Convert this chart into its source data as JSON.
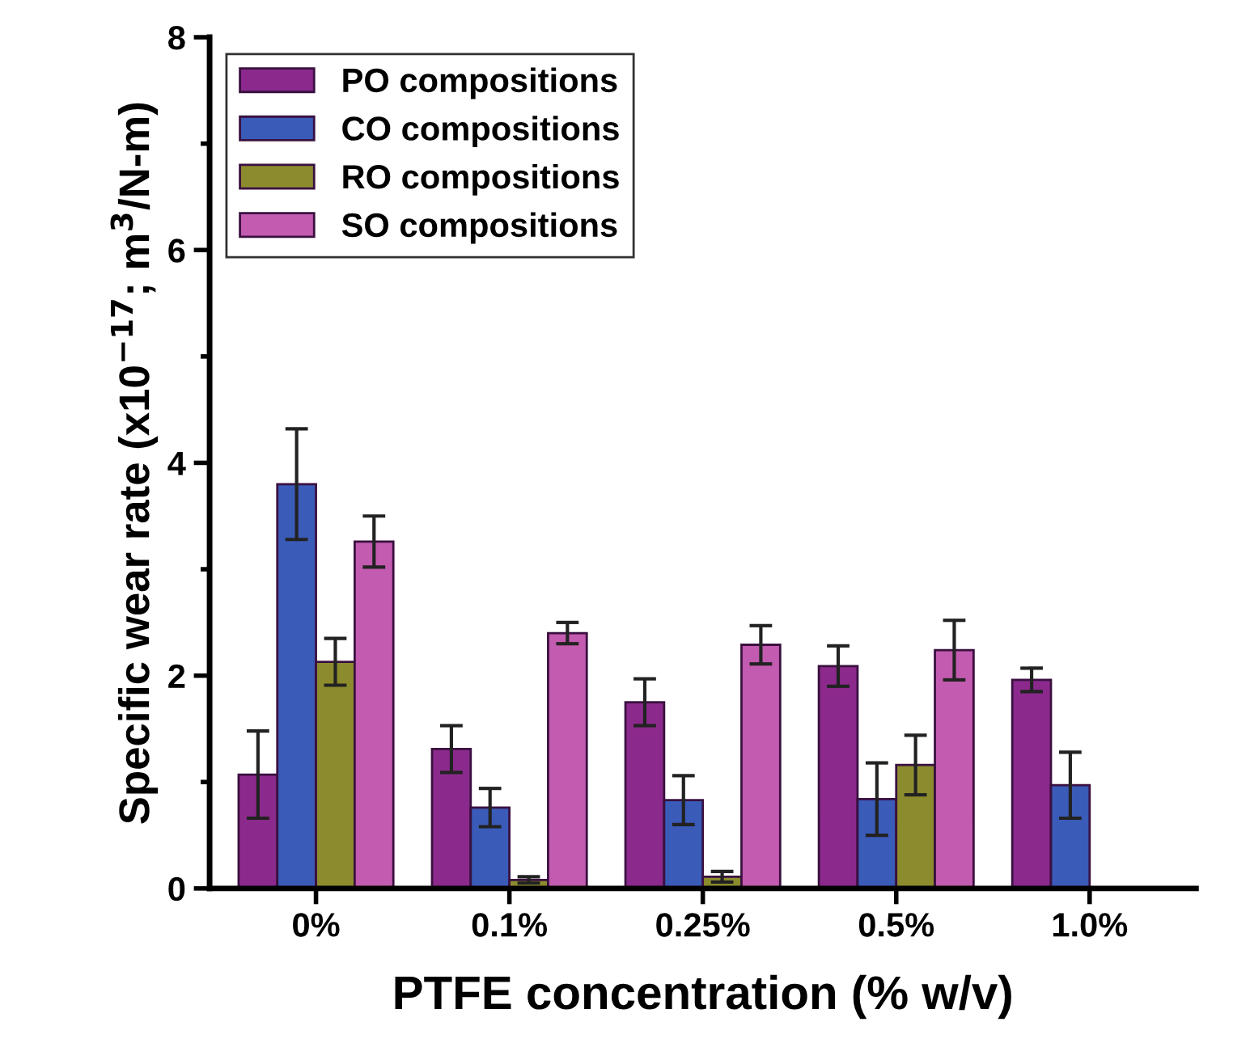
{
  "chart_data": {
    "type": "bar",
    "xlabel": "PTFE concentration (% w/v)",
    "ylabel": "Specific wear rate (x10$^{−17}$; m$^{3}$/N-m)",
    "categories": [
      "0%",
      "0.1%",
      "0.25%",
      "0.5%",
      "1.0%"
    ],
    "series": [
      {
        "name": "PO compositions",
        "color": "#8b2a8c",
        "values": [
          1.07,
          1.31,
          1.75,
          2.09,
          1.96
        ],
        "errors": [
          0.41,
          0.22,
          0.22,
          0.19,
          0.11
        ]
      },
      {
        "name": "CO compositions",
        "color": "#3a5bb8",
        "values": [
          3.8,
          0.76,
          0.83,
          0.84,
          0.97
        ],
        "errors": [
          0.52,
          0.18,
          0.23,
          0.34,
          0.31
        ]
      },
      {
        "name": "RO compositions",
        "color": "#8c8c2e",
        "values": [
          2.13,
          0.08,
          0.11,
          1.16,
          null
        ],
        "errors": [
          0.22,
          0.03,
          0.05,
          0.28,
          null
        ]
      },
      {
        "name": "SO compositions",
        "color": "#c35bb0",
        "values": [
          3.26,
          2.4,
          2.29,
          2.24,
          null
        ],
        "errors": [
          0.24,
          0.1,
          0.18,
          0.28,
          null
        ]
      }
    ],
    "ylim": [
      0,
      8
    ],
    "yticks": [
      0,
      2,
      4,
      6,
      8
    ],
    "legend": "top left",
    "grid": false
  }
}
